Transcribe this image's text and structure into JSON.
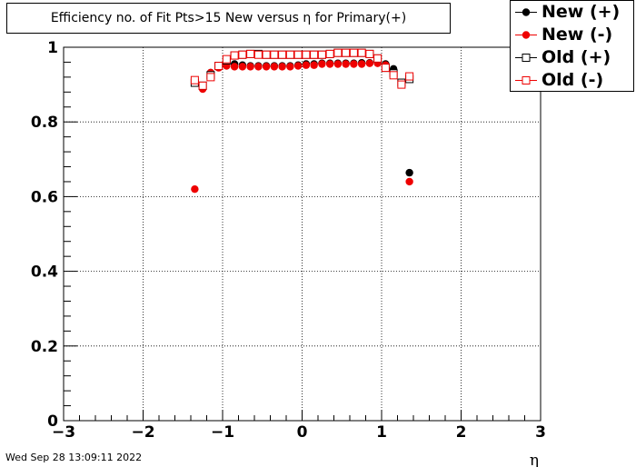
{
  "title": "Efficiency no. of Fit Pts>15 New versus η for Primary(+)",
  "timestamp": "Wed Sep 28 13:09:11 2022",
  "chart_data": {
    "type": "scatter",
    "title": "Efficiency no. of Fit Pts>15 New versus η for Primary(+)",
    "xlabel": "η",
    "ylabel": "",
    "xlim": [
      -3,
      3
    ],
    "ylim": [
      0,
      1.0
    ],
    "x_ticks": [
      "−3",
      "−2",
      "−1",
      "0",
      "1",
      "2",
      "3"
    ],
    "y_ticks": [
      "0",
      "0.2",
      "0.4",
      "0.6",
      "0.8",
      "1"
    ],
    "grid": true,
    "legend_position": "top-right",
    "series": [
      {
        "name": "New (+)",
        "marker": "filled-circle",
        "color": "#000000",
        "x": [
          -1.25,
          -1.15,
          -1.05,
          -0.95,
          -0.85,
          -0.75,
          -0.65,
          -0.55,
          -0.45,
          -0.35,
          -0.25,
          -0.15,
          -0.05,
          0.05,
          0.15,
          0.25,
          0.35,
          0.45,
          0.55,
          0.65,
          0.75,
          0.85,
          0.95,
          1.05,
          1.15,
          1.25,
          1.35
        ],
        "y": [
          0.893,
          0.932,
          0.948,
          0.952,
          0.955,
          0.952,
          0.95,
          0.95,
          0.95,
          0.95,
          0.95,
          0.95,
          0.952,
          0.955,
          0.955,
          0.957,
          0.957,
          0.957,
          0.957,
          0.957,
          0.958,
          0.958,
          0.958,
          0.955,
          0.942,
          0.902,
          0.664
        ]
      },
      {
        "name": "New (-)",
        "marker": "filled-circle",
        "color": "#ee0000",
        "x": [
          -1.35,
          -1.25,
          -1.15,
          -1.05,
          -0.95,
          -0.85,
          -0.75,
          -0.65,
          -0.55,
          -0.45,
          -0.35,
          -0.25,
          -0.15,
          -0.05,
          0.05,
          0.15,
          0.25,
          0.35,
          0.45,
          0.55,
          0.65,
          0.75,
          0.85,
          0.95,
          1.05,
          1.15,
          1.25,
          1.35
        ],
        "y": [
          0.62,
          0.888,
          0.932,
          0.945,
          0.95,
          0.948,
          0.948,
          0.948,
          0.948,
          0.948,
          0.948,
          0.948,
          0.948,
          0.95,
          0.952,
          0.952,
          0.955,
          0.955,
          0.955,
          0.955,
          0.955,
          0.955,
          0.957,
          0.957,
          0.952,
          0.93,
          0.9,
          0.64
        ]
      },
      {
        "name": "Old (+)",
        "marker": "open-square",
        "color": "#000000",
        "x": [
          -1.35,
          -1.25,
          -1.15,
          -1.05,
          -0.95,
          -0.85,
          -0.75,
          -0.65,
          -0.55,
          -0.45,
          -0.35,
          -0.25,
          -0.15,
          -0.05,
          0.05,
          0.15,
          0.25,
          0.35,
          0.45,
          0.55,
          0.65,
          0.75,
          0.85,
          0.95,
          1.05,
          1.15,
          1.25,
          1.35
        ],
        "y": [
          0.905,
          0.897,
          0.925,
          0.95,
          0.965,
          0.978,
          0.98,
          0.982,
          0.982,
          0.98,
          0.98,
          0.98,
          0.98,
          0.98,
          0.98,
          0.98,
          0.98,
          0.982,
          0.985,
          0.985,
          0.985,
          0.985,
          0.982,
          0.97,
          0.945,
          0.93,
          0.905,
          0.915
        ]
      },
      {
        "name": "Old (-)",
        "marker": "open-square",
        "color": "#ee0000",
        "x": [
          -1.35,
          -1.25,
          -1.15,
          -1.05,
          -0.95,
          -0.85,
          -0.75,
          -0.65,
          -0.55,
          -0.45,
          -0.35,
          -0.25,
          -0.15,
          -0.05,
          0.05,
          0.15,
          0.25,
          0.35,
          0.45,
          0.55,
          0.65,
          0.75,
          0.85,
          0.95,
          1.05,
          1.15,
          1.25,
          1.35
        ],
        "y": [
          0.912,
          0.897,
          0.92,
          0.95,
          0.968,
          0.978,
          0.98,
          0.982,
          0.98,
          0.98,
          0.98,
          0.98,
          0.98,
          0.98,
          0.98,
          0.98,
          0.98,
          0.982,
          0.985,
          0.985,
          0.985,
          0.985,
          0.982,
          0.97,
          0.945,
          0.925,
          0.9,
          0.922
        ]
      }
    ]
  }
}
